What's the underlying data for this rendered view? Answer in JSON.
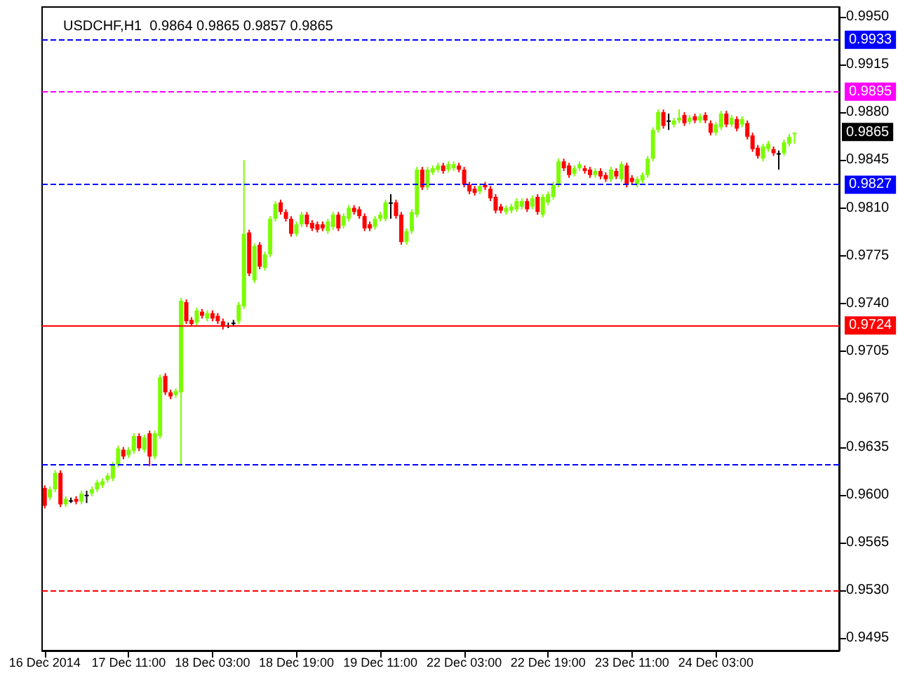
{
  "chart_data": {
    "type": "candlestick",
    "title": "USDCHF,H1  0.9864 0.9865 0.9857 0.9865",
    "categories": [
      "16 Dec 2014",
      null,
      null,
      null,
      null,
      null,
      null,
      null,
      null,
      null,
      null,
      null,
      null,
      null,
      null,
      null,
      "17 Dec 11:00",
      null,
      null,
      null,
      null,
      null,
      null,
      null,
      null,
      null,
      null,
      null,
      null,
      null,
      null,
      null,
      "18 Dec 03:00",
      null,
      null,
      null,
      null,
      null,
      null,
      null,
      null,
      null,
      null,
      null,
      null,
      null,
      null,
      null,
      "18 Dec 19:00",
      null,
      null,
      null,
      null,
      null,
      null,
      null,
      null,
      null,
      null,
      null,
      null,
      null,
      null,
      null,
      "19 Dec 11:00",
      null,
      null,
      null,
      null,
      null,
      null,
      null,
      null,
      null,
      null,
      null,
      null,
      null,
      null,
      null,
      "22 Dec 03:00",
      null,
      null,
      null,
      null,
      null,
      null,
      null,
      null,
      null,
      null,
      null,
      null,
      null,
      null,
      null,
      "22 Dec 19:00",
      null,
      null,
      null,
      null,
      null,
      null,
      null,
      null,
      null,
      null,
      null,
      null,
      null,
      null,
      null,
      "23 Dec 11:00",
      null,
      null,
      null,
      null,
      null,
      null,
      null,
      null,
      null,
      null,
      null,
      null,
      null,
      null,
      null,
      "24 Dec 03:00",
      null,
      null,
      null,
      null,
      null,
      null,
      null,
      null,
      null,
      null,
      null,
      null,
      null,
      null,
      null,
      null,
      null,
      null,
      null,
      null,
      null,
      null,
      null
    ],
    "ohlc": [
      [
        0.9605,
        0.9607,
        0.959,
        0.9592
      ],
      [
        0.9598,
        0.9606,
        0.9596,
        0.9604
      ],
      [
        0.9604,
        0.9618,
        0.9602,
        0.9616
      ],
      [
        0.9616,
        0.9618,
        0.9591,
        0.9593
      ],
      [
        0.9593,
        0.9599,
        0.9591,
        0.9597
      ],
      [
        0.9596,
        0.9598,
        0.9594,
        0.9596
      ],
      [
        0.9597,
        0.9599,
        0.9593,
        0.9595
      ],
      [
        0.9595,
        0.9603,
        0.9593,
        0.9601
      ],
      [
        0.96,
        0.9603,
        0.9594,
        0.96
      ],
      [
        0.9601,
        0.9606,
        0.9599,
        0.9604
      ],
      [
        0.9604,
        0.9611,
        0.9602,
        0.9609
      ],
      [
        0.9607,
        0.9612,
        0.9605,
        0.961
      ],
      [
        0.9611,
        0.9616,
        0.9609,
        0.9614
      ],
      [
        0.9612,
        0.9624,
        0.961,
        0.9622
      ],
      [
        0.9622,
        0.9636,
        0.962,
        0.9634
      ],
      [
        0.9633,
        0.9635,
        0.9626,
        0.9628
      ],
      [
        0.9629,
        0.9635,
        0.9627,
        0.9633
      ],
      [
        0.9632,
        0.9645,
        0.963,
        0.9643
      ],
      [
        0.9643,
        0.9645,
        0.9632,
        0.9634
      ],
      [
        0.9633,
        0.9644,
        0.9631,
        0.9642
      ],
      [
        0.9645,
        0.9647,
        0.9621,
        0.9628
      ],
      [
        0.9628,
        0.9647,
        0.9626,
        0.9645
      ],
      [
        0.9643,
        0.9688,
        0.9641,
        0.9686
      ],
      [
        0.9687,
        0.9689,
        0.9673,
        0.9675
      ],
      [
        0.9675,
        0.9677,
        0.967,
        0.9672
      ],
      [
        0.9673,
        0.9678,
        0.9671,
        0.9676
      ],
      [
        0.9675,
        0.9744,
        0.9622,
        0.9742
      ],
      [
        0.9741,
        0.9743,
        0.9725,
        0.9727
      ],
      [
        0.9728,
        0.973,
        0.9723,
        0.9725
      ],
      [
        0.9726,
        0.9737,
        0.9724,
        0.9735
      ],
      [
        0.9734,
        0.9736,
        0.9729,
        0.9731
      ],
      [
        0.9729,
        0.9735,
        0.9727,
        0.9733
      ],
      [
        0.9733,
        0.9735,
        0.9727,
        0.9729
      ],
      [
        0.9731,
        0.9733,
        0.9725,
        0.9727
      ],
      [
        0.9727,
        0.9729,
        0.9721,
        0.9723
      ],
      [
        0.9724,
        0.9726,
        0.9722,
        0.9724
      ],
      [
        0.9726,
        0.9728,
        0.9724,
        0.9726
      ],
      [
        0.9727,
        0.9741,
        0.9725,
        0.9739
      ],
      [
        0.9738,
        0.9845,
        0.9736,
        0.9791
      ],
      [
        0.9792,
        0.9794,
        0.976,
        0.9762
      ],
      [
        0.9757,
        0.9784,
        0.9755,
        0.9782
      ],
      [
        0.9783,
        0.9785,
        0.9765,
        0.9767
      ],
      [
        0.9766,
        0.9778,
        0.9764,
        0.9776
      ],
      [
        0.9776,
        0.9804,
        0.9774,
        0.9802
      ],
      [
        0.9802,
        0.9815,
        0.98,
        0.9813
      ],
      [
        0.9814,
        0.9816,
        0.9805,
        0.9807
      ],
      [
        0.9807,
        0.9809,
        0.98,
        0.9802
      ],
      [
        0.9802,
        0.9804,
        0.9789,
        0.9791
      ],
      [
        0.9791,
        0.98,
        0.9789,
        0.9798
      ],
      [
        0.9798,
        0.9807,
        0.9796,
        0.9805
      ],
      [
        0.9805,
        0.9807,
        0.9796,
        0.9798
      ],
      [
        0.9799,
        0.9801,
        0.9793,
        0.9795
      ],
      [
        0.9798,
        0.98,
        0.9792,
        0.9794
      ],
      [
        0.9798,
        0.98,
        0.9793,
        0.9795
      ],
      [
        0.9793,
        0.9802,
        0.9791,
        0.98
      ],
      [
        0.9796,
        0.9807,
        0.9794,
        0.9805
      ],
      [
        0.9805,
        0.9807,
        0.9793,
        0.9795
      ],
      [
        0.9797,
        0.9806,
        0.9795,
        0.9804
      ],
      [
        0.9802,
        0.9812,
        0.98,
        0.981
      ],
      [
        0.981,
        0.9812,
        0.9805,
        0.9807
      ],
      [
        0.9809,
        0.9811,
        0.9802,
        0.9804
      ],
      [
        0.9804,
        0.9806,
        0.9793,
        0.9795
      ],
      [
        0.9798,
        0.98,
        0.9793,
        0.9795
      ],
      [
        0.9796,
        0.9804,
        0.9794,
        0.9802
      ],
      [
        0.9802,
        0.9807,
        0.98,
        0.9805
      ],
      [
        0.9802,
        0.9816,
        0.98,
        0.9814
      ],
      [
        0.9814,
        0.982,
        0.9802,
        0.9814
      ],
      [
        0.9814,
        0.9816,
        0.9802,
        0.9804
      ],
      [
        0.9805,
        0.9807,
        0.9783,
        0.9785
      ],
      [
        0.9785,
        0.9795,
        0.9783,
        0.9793
      ],
      [
        0.9793,
        0.9809,
        0.9791,
        0.9807
      ],
      [
        0.9805,
        0.984,
        0.9803,
        0.9838
      ],
      [
        0.9838,
        0.984,
        0.9823,
        0.9825
      ],
      [
        0.9825,
        0.984,
        0.9823,
        0.9838
      ],
      [
        0.9836,
        0.9841,
        0.9834,
        0.9839
      ],
      [
        0.9838,
        0.9843,
        0.9836,
        0.9841
      ],
      [
        0.9841,
        0.9843,
        0.9835,
        0.9837
      ],
      [
        0.9838,
        0.9844,
        0.9836,
        0.9842
      ],
      [
        0.9839,
        0.9844,
        0.9837,
        0.9842
      ],
      [
        0.9841,
        0.9843,
        0.9836,
        0.9838
      ],
      [
        0.9838,
        0.984,
        0.9825,
        0.9827
      ],
      [
        0.9827,
        0.9829,
        0.982,
        0.9822
      ],
      [
        0.9824,
        0.9826,
        0.9819,
        0.9821
      ],
      [
        0.9822,
        0.9828,
        0.982,
        0.9826
      ],
      [
        0.9827,
        0.9829,
        0.9823,
        0.9825
      ],
      [
        0.9824,
        0.9826,
        0.9815,
        0.9817
      ],
      [
        0.9818,
        0.982,
        0.9806,
        0.9808
      ],
      [
        0.9811,
        0.9813,
        0.9806,
        0.9808
      ],
      [
        0.9807,
        0.9812,
        0.9805,
        0.981
      ],
      [
        0.9808,
        0.9813,
        0.9806,
        0.9811
      ],
      [
        0.9809,
        0.9817,
        0.9807,
        0.9815
      ],
      [
        0.9811,
        0.9817,
        0.9809,
        0.9815
      ],
      [
        0.9815,
        0.9817,
        0.9807,
        0.9809
      ],
      [
        0.9811,
        0.9819,
        0.9809,
        0.9817
      ],
      [
        0.9818,
        0.982,
        0.9805,
        0.9807
      ],
      [
        0.9805,
        0.982,
        0.9803,
        0.9818
      ],
      [
        0.9814,
        0.9822,
        0.9812,
        0.982
      ],
      [
        0.9818,
        0.9829,
        0.9816,
        0.9827
      ],
      [
        0.9827,
        0.9846,
        0.9825,
        0.9844
      ],
      [
        0.9844,
        0.9846,
        0.9837,
        0.9839
      ],
      [
        0.9841,
        0.9843,
        0.9832,
        0.9834
      ],
      [
        0.9835,
        0.9841,
        0.9833,
        0.9839
      ],
      [
        0.9839,
        0.9844,
        0.9837,
        0.9842
      ],
      [
        0.9839,
        0.9841,
        0.9835,
        0.9837
      ],
      [
        0.9838,
        0.984,
        0.9832,
        0.9834
      ],
      [
        0.9834,
        0.9839,
        0.9832,
        0.9837
      ],
      [
        0.9837,
        0.9839,
        0.9831,
        0.9833
      ],
      [
        0.9834,
        0.9836,
        0.9829,
        0.9831
      ],
      [
        0.9831,
        0.984,
        0.9829,
        0.9838
      ],
      [
        0.9837,
        0.9839,
        0.9831,
        0.9833
      ],
      [
        0.9831,
        0.9844,
        0.9829,
        0.9842
      ],
      [
        0.9841,
        0.9843,
        0.9825,
        0.9827
      ],
      [
        0.9832,
        0.9834,
        0.9827,
        0.9829
      ],
      [
        0.9827,
        0.9833,
        0.9825,
        0.9831
      ],
      [
        0.983,
        0.9836,
        0.9828,
        0.9834
      ],
      [
        0.9834,
        0.9848,
        0.9832,
        0.9846
      ],
      [
        0.9846,
        0.9869,
        0.9844,
        0.9867
      ],
      [
        0.9867,
        0.9882,
        0.9865,
        0.988
      ],
      [
        0.988,
        0.9882,
        0.9868,
        0.987
      ],
      [
        0.9874,
        0.9879,
        0.9867,
        0.9874
      ],
      [
        0.9871,
        0.9876,
        0.9869,
        0.9874
      ],
      [
        0.9874,
        0.9882,
        0.9872,
        0.9876
      ],
      [
        0.9878,
        0.988,
        0.987,
        0.9872
      ],
      [
        0.9873,
        0.9878,
        0.9871,
        0.9876
      ],
      [
        0.9877,
        0.9879,
        0.9872,
        0.9874
      ],
      [
        0.9874,
        0.9879,
        0.9872,
        0.9877
      ],
      [
        0.9878,
        0.988,
        0.9872,
        0.9874
      ],
      [
        0.9872,
        0.9874,
        0.9863,
        0.9865
      ],
      [
        0.9865,
        0.9873,
        0.9863,
        0.9871
      ],
      [
        0.9869,
        0.9881,
        0.9867,
        0.9879
      ],
      [
        0.9879,
        0.9881,
        0.9869,
        0.9871
      ],
      [
        0.9871,
        0.9878,
        0.9869,
        0.9876
      ],
      [
        0.9875,
        0.9877,
        0.9866,
        0.9868
      ],
      [
        0.9871,
        0.9877,
        0.9869,
        0.9875
      ],
      [
        0.9872,
        0.9874,
        0.986,
        0.9862
      ],
      [
        0.9863,
        0.9865,
        0.9851,
        0.9853
      ],
      [
        0.9854,
        0.9856,
        0.9846,
        0.9848
      ],
      [
        0.9846,
        0.9857,
        0.9844,
        0.9855
      ],
      [
        0.9853,
        0.9859,
        0.9851,
        0.9857
      ],
      [
        0.9853,
        0.9855,
        0.9848,
        0.985
      ],
      [
        0.985,
        0.9852,
        0.9838,
        0.985
      ],
      [
        0.985,
        0.986,
        0.9848,
        0.9858
      ],
      [
        0.9857,
        0.9864,
        0.9855,
        0.9862
      ],
      [
        0.9864,
        0.9865,
        0.9857,
        0.9865
      ],
      null,
      null,
      null,
      null,
      null,
      null,
      null,
      null
    ],
    "ylim": [
      0.9486,
      0.9957
    ],
    "yticks": [
      0.9495,
      {
        "value": 0.953,
        "label": "0.9530"
      },
      0.9565,
      {
        "value": 0.96,
        "label": "0.9600"
      },
      0.9635,
      {
        "value": 0.967,
        "label": "0.9670"
      },
      0.9705,
      {
        "value": 0.974,
        "label": "0.9740"
      },
      0.9775,
      {
        "value": 0.981,
        "label": "0.9810"
      },
      0.9845,
      {
        "value": 0.988,
        "label": "0.9880"
      },
      0.9915,
      {
        "value": 0.995,
        "label": "0.9950"
      }
    ],
    "ref_lines": [
      {
        "axis": "y",
        "value": 0.9933,
        "label": "0.9933",
        "color": "#0000ff",
        "line_style": "dashed"
      },
      {
        "axis": "y",
        "value": 0.9895,
        "label": "0.9895",
        "color": "#ff00ff",
        "line_style": "dashed"
      },
      {
        "axis": "y",
        "value": 0.9827,
        "label": "0.9827",
        "color": "#0000ff",
        "line_style": "dashed"
      },
      {
        "axis": "y",
        "value": 0.9724,
        "label": "0.9724",
        "color": "#ff0000",
        "line_style": "solid"
      },
      {
        "axis": "y",
        "value": 0.9622,
        "label": null,
        "color": "#0000ff",
        "line_style": "dashed"
      },
      {
        "axis": "y",
        "value": 0.953,
        "label": null,
        "color": "#ff0000",
        "line_style": "dashed"
      }
    ],
    "annotations": [
      {
        "text": "0.9865",
        "y": 0.9865
      }
    ]
  }
}
